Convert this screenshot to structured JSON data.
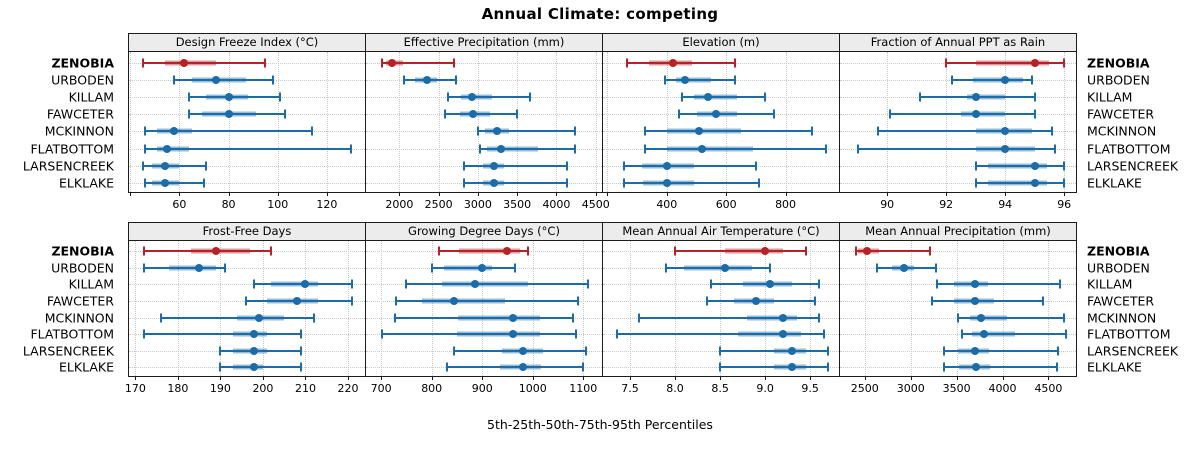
{
  "title": "Annual Climate: competing",
  "caption": "5th-25th-50th-75th-95th Percentiles",
  "colors": {
    "highlight": "#b52227",
    "series": "#1b6ca8",
    "strip_bg": "#ececec",
    "panel_border": "#1c1c1c",
    "grid": "#c9c9c9",
    "text": "#000000"
  },
  "chart_data": {
    "type": "scatter",
    "variant": "dotplot-with-percentile-intervals",
    "percentiles": [
      "5th",
      "25th",
      "50th",
      "75th",
      "95th"
    ],
    "sites": [
      "ZENOBIA",
      "URBODEN",
      "KILLAM",
      "FAWCETER",
      "MCKINNON",
      "FLATBOTTOM",
      "LARSENCREEK",
      "ELKLAKE"
    ],
    "highlighted_site": "ZENOBIA",
    "grid": "dotted",
    "legend": "none",
    "layout": {
      "rows": 2,
      "cols": 4,
      "site_labels": "left-and-right"
    },
    "panels": [
      {
        "title": "Design Freeze Index (°C)",
        "xlim": [
          39.5,
          135.5
        ],
        "ticks": [
          40,
          60,
          80,
          100,
          120
        ],
        "tick_labels": [
          "",
          "60",
          "80",
          "100",
          "120"
        ],
        "values": {
          "ZENOBIA": [
            45,
            54,
            62,
            75,
            95
          ],
          "URBODEN": [
            58,
            65,
            75,
            87,
            98
          ],
          "KILLAM": [
            64,
            71,
            80,
            88,
            101
          ],
          "FAWCETER": [
            64,
            69,
            80,
            91,
            103
          ],
          "MCKINNON": [
            46,
            51,
            58,
            65,
            114
          ],
          "FLATBOTTOM": [
            46,
            51,
            55,
            64,
            130
          ],
          "LARSENCREEK": [
            45,
            49,
            54,
            60,
            71
          ],
          "ELKLAKE": [
            46,
            49,
            54,
            60,
            70
          ]
        }
      },
      {
        "title": "Effective Precipitation (mm)",
        "xlim": [
          1575,
          4580
        ],
        "ticks": [
          2000,
          2500,
          3000,
          3500,
          4000,
          4500
        ],
        "tick_labels": [
          "2000",
          "2500",
          "3000",
          "3500",
          "4000",
          "4500"
        ],
        "values": {
          "ZENOBIA": [
            1775,
            1825,
            1910,
            2040,
            2690
          ],
          "URBODEN": [
            2060,
            2200,
            2350,
            2480,
            2720
          ],
          "KILLAM": [
            2620,
            2780,
            2920,
            3180,
            3660
          ],
          "FAWCETER": [
            2580,
            2770,
            2940,
            3160,
            3500
          ],
          "MCKINNON": [
            3000,
            3090,
            3240,
            3400,
            4240
          ],
          "FLATBOTTOM": [
            3030,
            3110,
            3290,
            3760,
            4240
          ],
          "LARSENCREEK": [
            2820,
            3070,
            3200,
            3330,
            4140
          ],
          "ELKLAKE": [
            2820,
            3070,
            3200,
            3330,
            4140
          ]
        }
      },
      {
        "title": "Elevation (m)",
        "xlim": [
          185,
          980
        ],
        "ticks": [
          200,
          400,
          600,
          800
        ],
        "tick_labels": [
          "",
          "400",
          "600",
          "800"
        ],
        "values": {
          "ZENOBIA": [
            265,
            340,
            420,
            485,
            630
          ],
          "URBODEN": [
            395,
            430,
            460,
            550,
            630
          ],
          "KILLAM": [
            450,
            490,
            540,
            635,
            730
          ],
          "FAWCETER": [
            440,
            500,
            565,
            635,
            760
          ],
          "MCKINNON": [
            325,
            400,
            510,
            650,
            890
          ],
          "FLATBOTTOM": [
            325,
            400,
            520,
            690,
            935
          ],
          "LARSENCREEK": [
            255,
            315,
            400,
            490,
            700
          ],
          "ELKLAKE": [
            255,
            320,
            400,
            490,
            710
          ]
        }
      },
      {
        "title": "Fraction of Annual PPT as Rain",
        "xlim": [
          88.4,
          96.4
        ],
        "ticks": [
          90,
          92,
          94,
          96
        ],
        "tick_labels": [
          "90",
          "92",
          "94",
          "96"
        ],
        "values": {
          "ZENOBIA": [
            92.0,
            93.0,
            95.0,
            95.5,
            96.0
          ],
          "URBODEN": [
            92.2,
            92.9,
            94.0,
            94.6,
            94.9
          ],
          "KILLAM": [
            91.1,
            92.7,
            93.0,
            94.0,
            95.0
          ],
          "FAWCETER": [
            90.1,
            92.5,
            93.0,
            94.0,
            95.0
          ],
          "MCKINNON": [
            89.7,
            93.0,
            94.0,
            94.9,
            95.6
          ],
          "FLATBOTTOM": [
            89.0,
            93.0,
            94.0,
            95.0,
            95.7
          ],
          "LARSENCREEK": [
            93.0,
            93.4,
            95.0,
            95.4,
            96.0
          ],
          "ELKLAKE": [
            93.0,
            93.4,
            95.0,
            95.4,
            96.0
          ]
        }
      },
      {
        "title": "Frost-Free Days",
        "xlim": [
          168.5,
          224
        ],
        "ticks": [
          170,
          180,
          190,
          200,
          210,
          220
        ],
        "tick_labels": [
          "170",
          "180",
          "190",
          "200",
          "210",
          "220"
        ],
        "values": {
          "ZENOBIA": [
            172,
            183,
            189,
            197,
            202
          ],
          "URBODEN": [
            172,
            178,
            185,
            189,
            191
          ],
          "KILLAM": [
            198,
            202,
            210,
            213,
            221
          ],
          "FAWCETER": [
            196,
            201,
            208,
            213,
            221
          ],
          "MCKINNON": [
            176,
            194,
            199,
            205,
            212
          ],
          "FLATBOTTOM": [
            172,
            193,
            198,
            201,
            209
          ],
          "LARSENCREEK": [
            190,
            193,
            198,
            201,
            209
          ],
          "ELKLAKE": [
            190,
            193,
            198,
            200,
            209
          ]
        }
      },
      {
        "title": "Growing Degree Days (°C)",
        "xlim": [
          670,
          1137
        ],
        "ticks": [
          700,
          800,
          900,
          1000,
          1100
        ],
        "tick_labels": [
          "700",
          "800",
          "900",
          "1000",
          "1100"
        ],
        "values": {
          "ZENOBIA": [
            815,
            855,
            950,
            975,
            990
          ],
          "URBODEN": [
            800,
            825,
            900,
            920,
            965
          ],
          "KILLAM": [
            750,
            820,
            885,
            990,
            1110
          ],
          "FAWCETER": [
            730,
            780,
            845,
            945,
            1090
          ],
          "MCKINNON": [
            728,
            853,
            960,
            1015,
            1080
          ],
          "FLATBOTTOM": [
            702,
            850,
            960,
            1015,
            1085
          ],
          "LARSENCREEK": [
            845,
            940,
            980,
            1020,
            1105
          ],
          "ELKLAKE": [
            830,
            935,
            980,
            1017,
            1100
          ]
        }
      },
      {
        "title": "Mean Annual Air Temperature (°C)",
        "xlim": [
          7.2,
          9.82
        ],
        "ticks": [
          7.5,
          8.0,
          8.5,
          9.0,
          9.5
        ],
        "tick_labels": [
          "7.5",
          "8.0",
          "8.5",
          "9.0",
          "9.5"
        ],
        "values": {
          "ZENOBIA": [
            8.0,
            8.55,
            9.0,
            9.2,
            9.45
          ],
          "URBODEN": [
            7.9,
            8.1,
            8.55,
            8.85,
            9.05
          ],
          "KILLAM": [
            8.4,
            8.75,
            9.05,
            9.3,
            9.6
          ],
          "FAWCETER": [
            8.35,
            8.65,
            8.9,
            9.1,
            9.55
          ],
          "MCKINNON": [
            7.6,
            8.8,
            9.2,
            9.35,
            9.6
          ],
          "FLATBOTTOM": [
            7.35,
            8.7,
            9.2,
            9.4,
            9.65
          ],
          "LARSENCREEK": [
            8.5,
            9.1,
            9.3,
            9.45,
            9.7
          ],
          "ELKLAKE": [
            8.5,
            9.1,
            9.3,
            9.45,
            9.7
          ]
        }
      },
      {
        "title": "Mean Annual Precipitation (mm)",
        "xlim": [
          2230,
          4800
        ],
        "ticks": [
          2500,
          3000,
          3500,
          4000,
          4500
        ],
        "tick_labels": [
          "2500",
          "3000",
          "3500",
          "4000",
          "4500"
        ],
        "values": {
          "ZENOBIA": [
            2400,
            2430,
            2520,
            2650,
            3210
          ],
          "URBODEN": [
            2630,
            2800,
            2930,
            3040,
            3280
          ],
          "KILLAM": [
            3290,
            3470,
            3700,
            3840,
            4630
          ],
          "FAWCETER": [
            3230,
            3470,
            3700,
            3910,
            4440
          ],
          "MCKINNON": [
            3520,
            3650,
            3770,
            4050,
            4670
          ],
          "FLATBOTTOM": [
            3560,
            3670,
            3800,
            4140,
            4690
          ],
          "LARSENCREEK": [
            3360,
            3520,
            3700,
            3850,
            4600
          ],
          "ELKLAKE": [
            3360,
            3530,
            3710,
            3860,
            4590
          ]
        }
      }
    ]
  }
}
